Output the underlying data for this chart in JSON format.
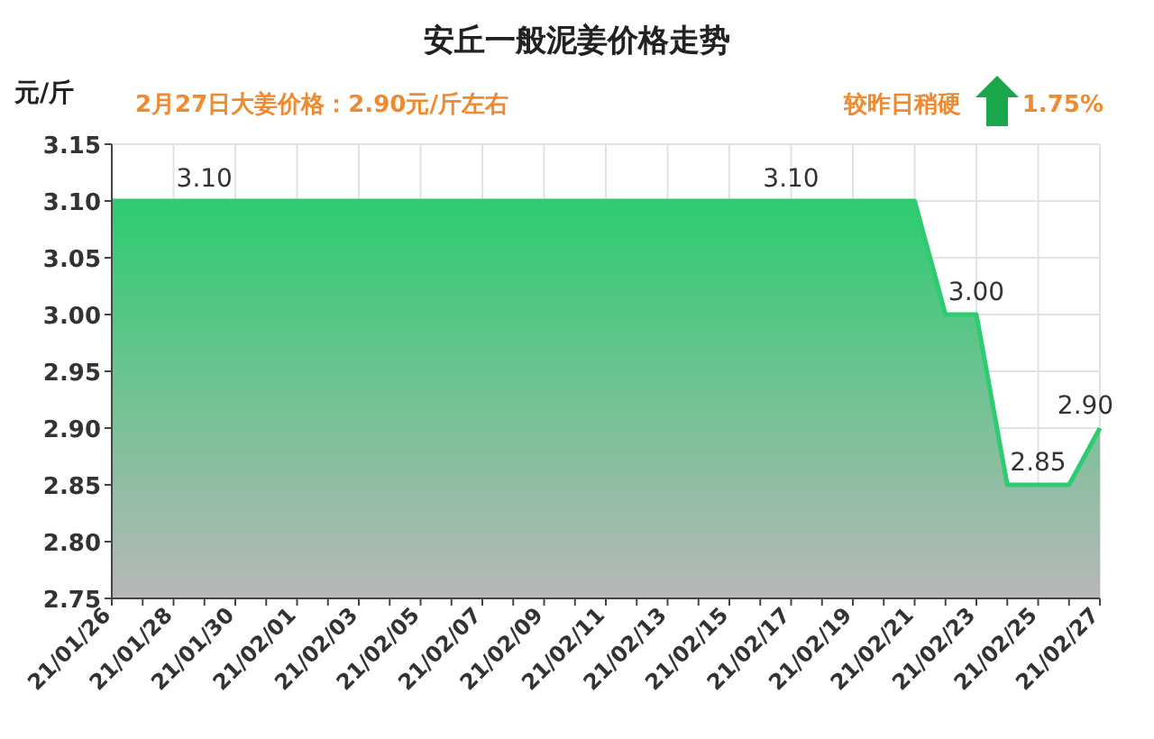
{
  "chart_data": {
    "type": "area",
    "title": "安丘一般泥姜价格走势",
    "ylabel": "元/斤",
    "annotations": [
      "2月27日大姜价格：2.90元/斤左右",
      "较昨日稍硬",
      "1.75%"
    ],
    "categories": [
      "21/01/26",
      null,
      "21/01/28",
      null,
      "21/01/30",
      null,
      "21/02/01",
      null,
      "21/02/03",
      null,
      "21/02/05",
      null,
      "21/02/07",
      null,
      "21/02/09",
      null,
      "21/02/11",
      null,
      "21/02/13",
      null,
      "21/02/15",
      null,
      "21/02/17",
      null,
      "21/02/19",
      null,
      "21/02/21",
      null,
      "21/02/23",
      null,
      "21/02/25",
      null,
      "21/02/27"
    ],
    "series": [
      {
        "color": "#2ecc71",
        "values": [
          3.1,
          3.1,
          3.1,
          3.1,
          3.1,
          3.1,
          3.1,
          3.1,
          3.1,
          3.1,
          3.1,
          3.1,
          3.1,
          3.1,
          3.1,
          3.1,
          3.1,
          3.1,
          3.1,
          3.1,
          3.1,
          3.1,
          3.1,
          3.1,
          3.1,
          3.1,
          3.1,
          3.0,
          3.0,
          2.85,
          2.85,
          2.85,
          2.9
        ],
        "value_labels": [
          null,
          null,
          null,
          "3.10",
          null,
          null,
          null,
          null,
          null,
          null,
          null,
          null,
          null,
          null,
          null,
          null,
          null,
          null,
          null,
          null,
          null,
          null,
          "3.10",
          null,
          null,
          null,
          null,
          null,
          "3.00",
          null,
          "2.85",
          null,
          "2.90"
        ]
      }
    ],
    "ylim": [
      2.75,
      3.15
    ],
    "yticks": [
      2.75,
      {
        "value": 2.8,
        "label": "2.80"
      },
      2.85,
      {
        "value": 2.9,
        "label": "2.90"
      },
      2.95,
      {
        "value": 3,
        "label": "3.00"
      },
      3.05,
      {
        "value": 3.1,
        "label": "3.10"
      },
      3.15
    ],
    "grid": true
  }
}
